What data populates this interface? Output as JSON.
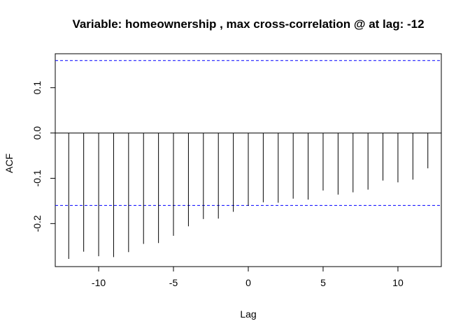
{
  "chart_data": {
    "type": "bar",
    "title": "Variable: homeownership , max cross-correlation @ at lag: -12",
    "xlabel": "Lag",
    "ylabel": "ACF",
    "x": [
      -12,
      -11,
      -10,
      -9,
      -8,
      -7,
      -6,
      -5,
      -4,
      -3,
      -2,
      -1,
      0,
      1,
      2,
      3,
      4,
      5,
      6,
      7,
      8,
      9,
      10,
      11,
      12
    ],
    "values": [
      -0.278,
      -0.262,
      -0.272,
      -0.274,
      -0.263,
      -0.245,
      -0.243,
      -0.227,
      -0.206,
      -0.19,
      -0.189,
      -0.174,
      -0.161,
      -0.153,
      -0.154,
      -0.145,
      -0.147,
      -0.127,
      -0.136,
      -0.131,
      -0.125,
      -0.105,
      -0.109,
      -0.103,
      -0.078
    ],
    "xlim": [
      -12.9,
      12.9
    ],
    "ylim": [
      -0.295,
      0.175
    ],
    "x_ticks": [
      "-10",
      "-5",
      "0",
      "5",
      "10"
    ],
    "y_ticks": [
      "-0.2",
      "-0.1",
      "0.0",
      "0.1"
    ],
    "confidence_bound": 0.16,
    "zero_line": true,
    "grid": false,
    "colors": {
      "bars": "#000000",
      "bounds": "#0000ff",
      "frame": "#000000"
    }
  }
}
